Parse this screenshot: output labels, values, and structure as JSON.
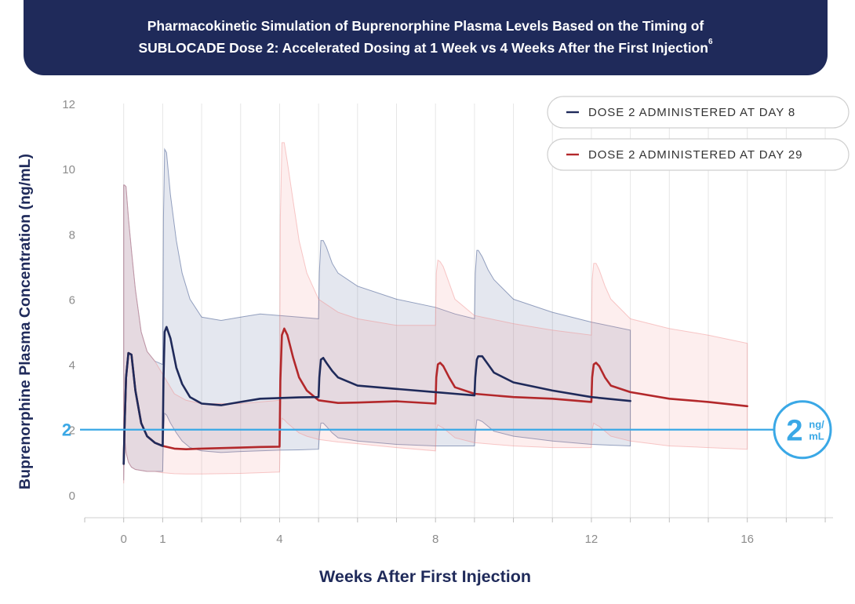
{
  "title": {
    "line1": "Pharmacokinetic Simulation of Buprenorphine Plasma Levels Based on the Timing of",
    "line2": "SUBLOCADE Dose 2: Accelerated Dosing at 1 Week vs 4 Weeks After the First Injection",
    "footnote": "6"
  },
  "chart_data": {
    "type": "line",
    "xlabel": "Weeks After First Injection",
    "ylabel": "Buprenorphine Plasma Concentration (ng/mL)",
    "xlim": [
      -1,
      18.2
    ],
    "ylim": [
      -0.7,
      12
    ],
    "x_ticks": [
      0,
      1,
      4,
      8,
      12,
      16
    ],
    "y_ticks": [
      0,
      2,
      4,
      6,
      8,
      10,
      12
    ],
    "threshold": {
      "value": 2,
      "label": "2",
      "badge_number": "2",
      "badge_unit_top": "ng/",
      "badge_unit_bottom": "mL"
    },
    "legend": [
      {
        "label": "DOSE 2 ADMINISTERED AT DAY 8",
        "color": "#1f2a5a"
      },
      {
        "label": "DOSE 2 ADMINISTERED AT DAY 29",
        "color": "#b3282b"
      }
    ],
    "series": [
      {
        "name": "DOSE 2 ADMINISTERED AT DAY 8",
        "color": "#1f2a5a",
        "band_color": "#1f3a7a",
        "x": [
          0,
          0.02,
          0.06,
          0.12,
          0.2,
          0.3,
          0.45,
          0.6,
          0.8,
          1.0,
          1.02,
          1.05,
          1.1,
          1.2,
          1.35,
          1.5,
          1.7,
          2.0,
          2.5,
          3.0,
          3.5,
          4.0,
          4.5,
          5.0,
          5.02,
          5.06,
          5.12,
          5.2,
          5.35,
          5.5,
          6.0,
          7.0,
          8.0,
          8.5,
          9.0,
          9.02,
          9.06,
          9.1,
          9.2,
          9.35,
          9.5,
          10.0,
          11.0,
          12.0,
          13.0
        ],
        "y": [
          0.95,
          2.0,
          3.6,
          4.35,
          4.3,
          3.2,
          2.2,
          1.8,
          1.6,
          1.5,
          3.5,
          5.0,
          5.15,
          4.8,
          3.9,
          3.4,
          3.0,
          2.8,
          2.75,
          2.85,
          2.95,
          2.97,
          2.99,
          3.0,
          3.6,
          4.15,
          4.2,
          4.05,
          3.8,
          3.6,
          3.35,
          3.25,
          3.15,
          3.1,
          3.05,
          3.6,
          4.15,
          4.25,
          4.25,
          4.0,
          3.75,
          3.45,
          3.2,
          3.0,
          2.88
        ],
        "band_upper": [
          9.5,
          9.5,
          9.45,
          8.5,
          7.5,
          6.3,
          5.0,
          4.4,
          4.1,
          4.0,
          8.5,
          10.6,
          10.5,
          9.2,
          7.8,
          6.8,
          6.0,
          5.45,
          5.35,
          5.45,
          5.55,
          5.5,
          5.45,
          5.4,
          6.8,
          7.8,
          7.8,
          7.6,
          7.1,
          6.8,
          6.4,
          6.0,
          5.75,
          5.55,
          5.4,
          6.8,
          7.5,
          7.5,
          7.3,
          6.9,
          6.6,
          6.0,
          5.6,
          5.3,
          5.05
        ],
        "band_lower": [
          0.45,
          1.8,
          1.3,
          1.0,
          0.85,
          0.78,
          0.75,
          0.72,
          0.72,
          0.72,
          1.8,
          2.5,
          2.45,
          2.2,
          1.9,
          1.65,
          1.45,
          1.35,
          1.3,
          1.33,
          1.35,
          1.37,
          1.38,
          1.4,
          1.8,
          2.2,
          2.2,
          2.1,
          1.9,
          1.75,
          1.65,
          1.55,
          1.5,
          1.5,
          1.5,
          1.9,
          2.3,
          2.3,
          2.25,
          2.1,
          1.95,
          1.8,
          1.65,
          1.55,
          1.5
        ]
      },
      {
        "name": "DOSE 2 ADMINISTERED AT DAY 29",
        "color": "#b3282b",
        "band_color": "#f08a8a",
        "x": [
          0,
          0.02,
          0.06,
          0.12,
          0.2,
          0.3,
          0.45,
          0.6,
          0.8,
          1.0,
          1.3,
          1.6,
          2.0,
          3.0,
          3.5,
          4.0,
          4.02,
          4.06,
          4.12,
          4.2,
          4.35,
          4.5,
          4.7,
          5.0,
          5.5,
          6.0,
          7.0,
          8.0,
          8.02,
          8.06,
          8.12,
          8.2,
          8.35,
          8.5,
          9.0,
          10.0,
          11.0,
          12.0,
          12.02,
          12.06,
          12.12,
          12.2,
          12.35,
          12.5,
          13.0,
          14.0,
          15.0,
          16.0
        ],
        "y": [
          0.95,
          2.0,
          3.6,
          4.35,
          4.3,
          3.2,
          2.2,
          1.8,
          1.6,
          1.5,
          1.42,
          1.4,
          1.42,
          1.45,
          1.47,
          1.48,
          3.5,
          4.9,
          5.1,
          4.9,
          4.2,
          3.6,
          3.2,
          2.9,
          2.82,
          2.83,
          2.87,
          2.8,
          3.6,
          4.0,
          4.05,
          3.95,
          3.6,
          3.3,
          3.1,
          3.0,
          2.95,
          2.85,
          3.6,
          4.0,
          4.05,
          3.95,
          3.6,
          3.35,
          3.15,
          2.95,
          2.85,
          2.72
        ],
        "band_upper": [
          9.5,
          9.5,
          9.45,
          8.5,
          7.5,
          6.3,
          5.0,
          4.4,
          4.1,
          3.7,
          3.1,
          2.9,
          2.8,
          2.8,
          2.85,
          2.9,
          8.5,
          10.8,
          10.8,
          10.2,
          9.0,
          7.8,
          6.8,
          6.0,
          5.6,
          5.4,
          5.2,
          5.2,
          6.8,
          7.2,
          7.15,
          7.0,
          6.5,
          6.0,
          5.5,
          5.25,
          5.05,
          4.9,
          6.6,
          7.1,
          7.1,
          6.9,
          6.4,
          6.0,
          5.4,
          5.1,
          4.9,
          4.65
        ],
        "band_lower": [
          0.35,
          1.8,
          1.3,
          1.0,
          0.85,
          0.78,
          0.75,
          0.72,
          0.72,
          0.68,
          0.65,
          0.64,
          0.64,
          0.66,
          0.68,
          0.7,
          1.8,
          2.35,
          2.3,
          2.2,
          2.05,
          1.9,
          1.8,
          1.7,
          1.62,
          1.57,
          1.45,
          1.35,
          2.0,
          2.15,
          2.1,
          2.05,
          1.9,
          1.75,
          1.6,
          1.5,
          1.45,
          1.45,
          2.0,
          2.2,
          2.15,
          2.1,
          1.95,
          1.8,
          1.65,
          1.5,
          1.45,
          1.4
        ]
      }
    ]
  }
}
